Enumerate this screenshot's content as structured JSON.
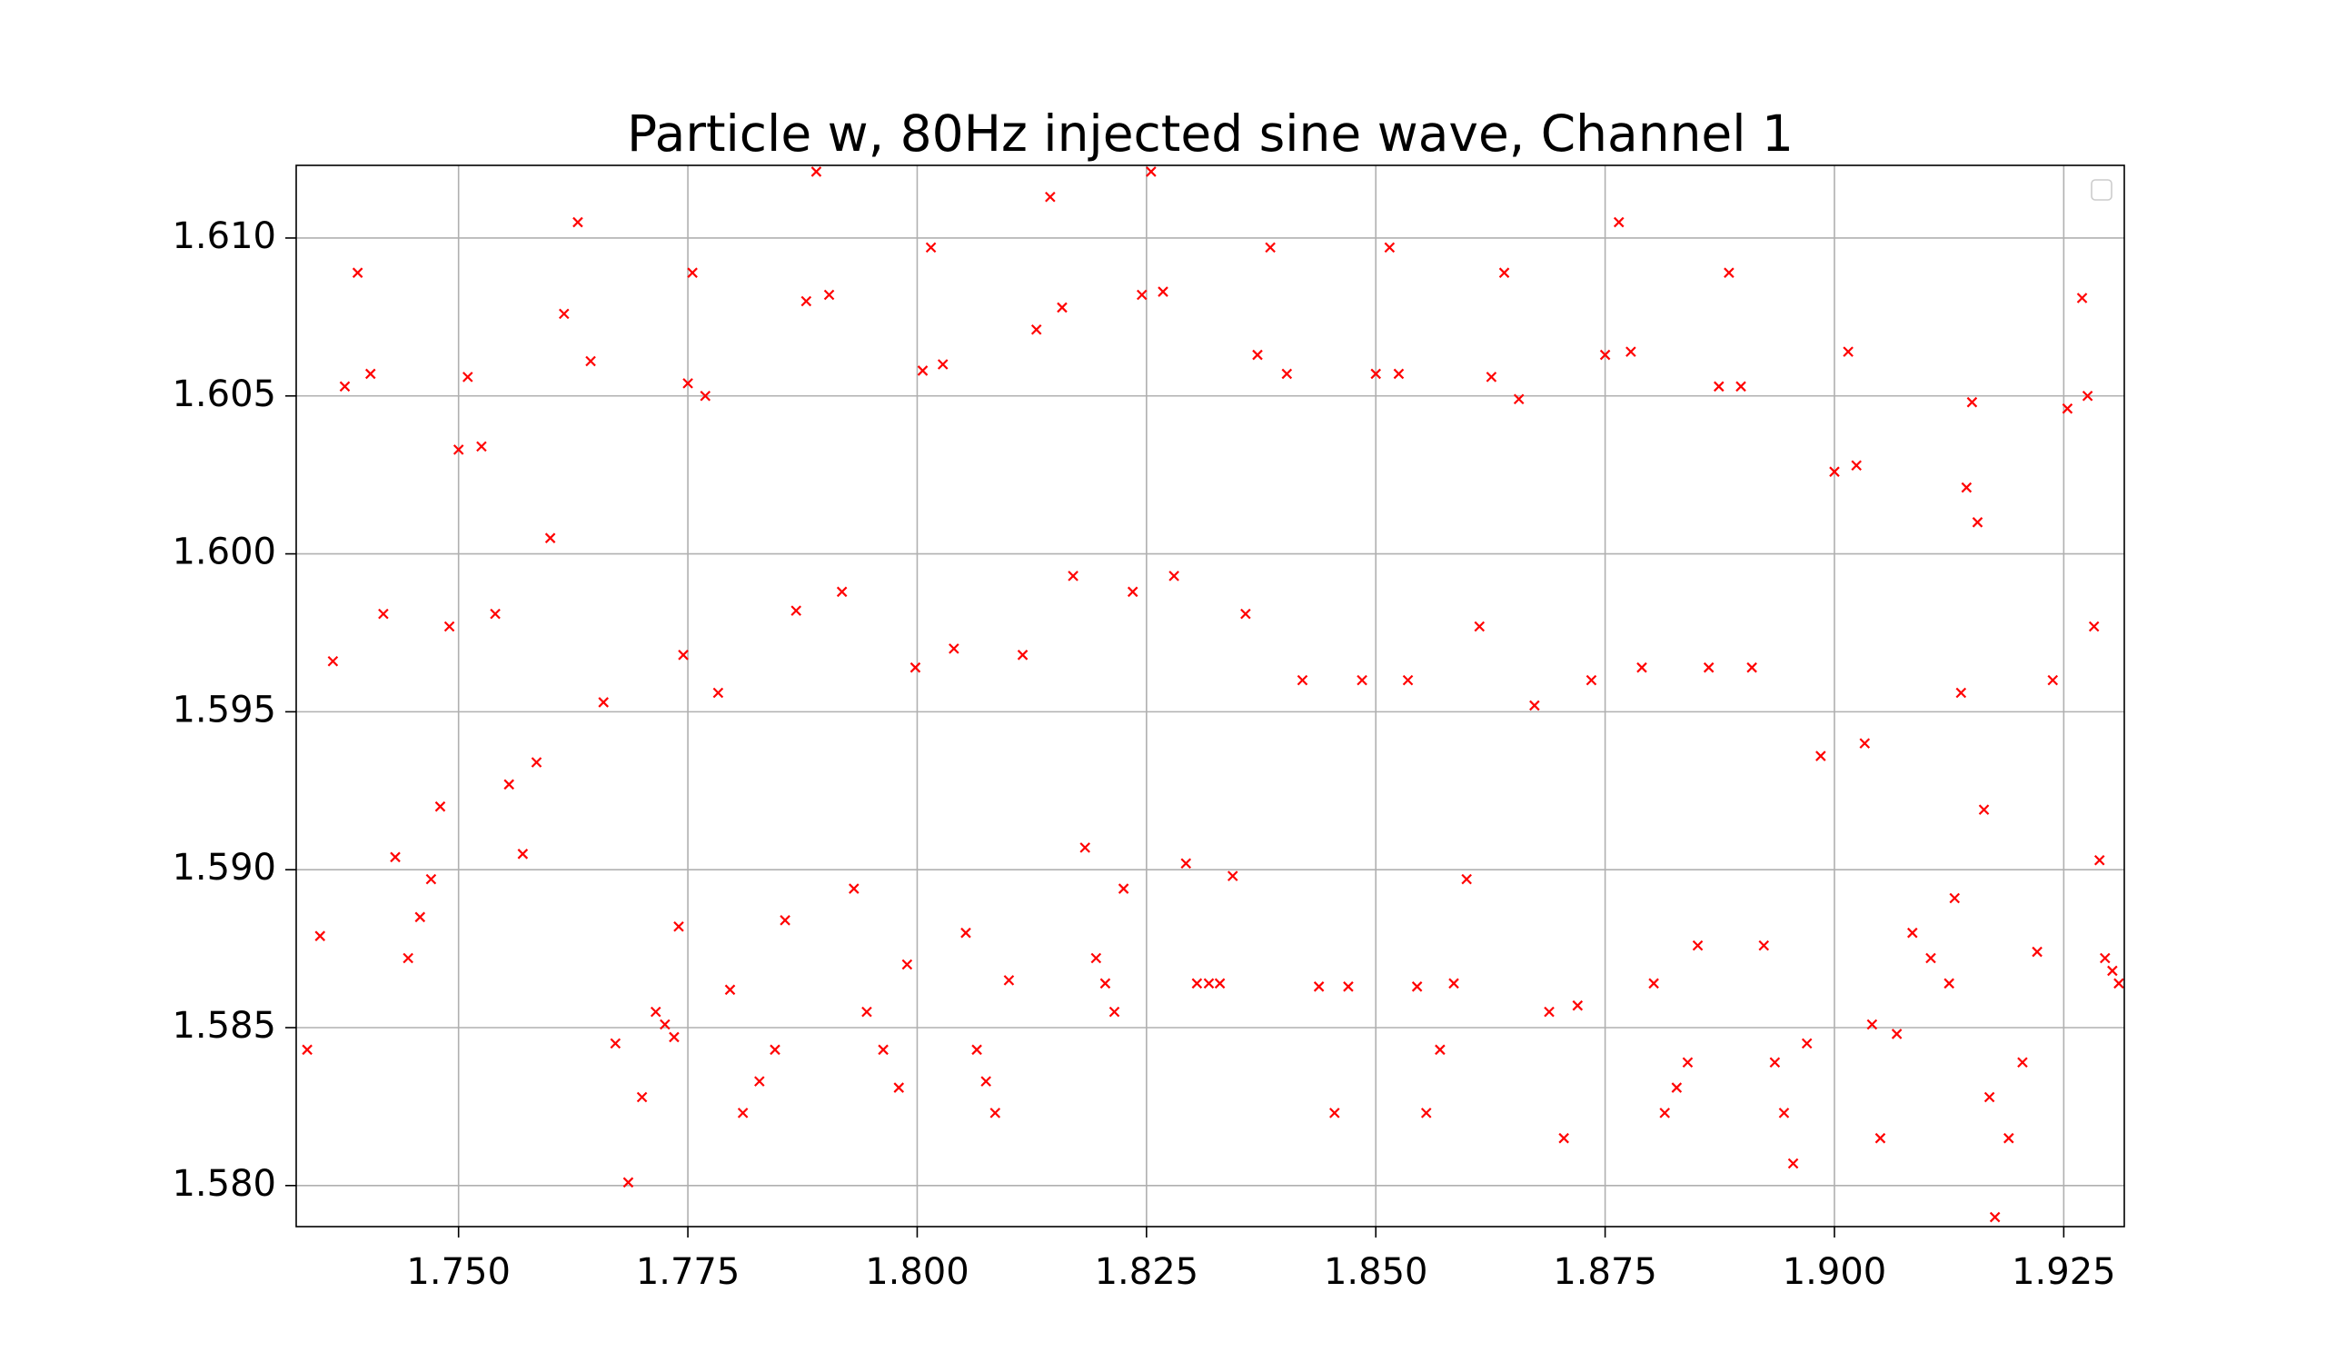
{
  "chart_data": {
    "type": "scatter",
    "title": "Particle w, 80Hz injected sine wave, Channel 1",
    "marker": "x",
    "color": "#ff0000",
    "grid": true,
    "legend": "upper right",
    "xlim": [
      1.7323,
      1.9316
    ],
    "ylim": [
      1.5787,
      1.6123
    ],
    "xticks": [
      {
        "value": 1.75,
        "label": "1.750"
      },
      {
        "value": 1.775,
        "label": "1.775"
      },
      {
        "value": 1.8,
        "label": "1.800"
      },
      {
        "value": 1.825,
        "label": "1.825"
      },
      {
        "value": 1.85,
        "label": "1.850"
      },
      {
        "value": 1.875,
        "label": "1.875"
      },
      {
        "value": 1.9,
        "label": "1.900"
      },
      {
        "value": 1.925,
        "label": "1.925"
      }
    ],
    "yticks": [
      {
        "value": 1.58,
        "label": "1.580"
      },
      {
        "value": 1.585,
        "label": "1.585"
      },
      {
        "value": 1.59,
        "label": "1.590"
      },
      {
        "value": 1.595,
        "label": "1.595"
      },
      {
        "value": 1.6,
        "label": "1.600"
      },
      {
        "value": 1.605,
        "label": "1.605"
      },
      {
        "value": 1.61,
        "label": "1.610"
      }
    ],
    "x": [
      1.7335,
      1.7349,
      1.7363,
      1.7376,
      1.739,
      1.7404,
      1.7418,
      1.7431,
      1.7445,
      1.7458,
      1.747,
      1.748,
      1.749,
      1.75,
      1.751,
      1.7525,
      1.754,
      1.7555,
      1.757,
      1.7585,
      1.76,
      1.7615,
      1.763,
      1.7644,
      1.7658,
      1.7671,
      1.7685,
      1.77,
      1.7715,
      1.7725,
      1.7735,
      1.774,
      1.7745,
      1.775,
      1.7755,
      1.7769,
      1.7783,
      1.7796,
      1.781,
      1.7828,
      1.7845,
      1.7856,
      1.7868,
      1.7879,
      1.789,
      1.7904,
      1.7918,
      1.7931,
      1.7945,
      1.7963,
      1.798,
      1.7989,
      1.7998,
      1.8006,
      1.8015,
      1.8028,
      1.804,
      1.8053,
      1.8065,
      1.8075,
      1.8085,
      1.81,
      1.8115,
      1.813,
      1.8145,
      1.8158,
      1.817,
      1.8183,
      1.8195,
      1.8205,
      1.8215,
      1.8225,
      1.8235,
      1.8245,
      1.8255,
      1.8268,
      1.828,
      1.8293,
      1.8305,
      1.8318,
      1.833,
      1.8344,
      1.8358,
      1.8371,
      1.8385,
      1.8403,
      1.842,
      1.8438,
      1.8455,
      1.847,
      1.8485,
      1.85,
      1.8515,
      1.8525,
      1.8535,
      1.8545,
      1.8555,
      1.857,
      1.8585,
      1.8599,
      1.8613,
      1.8626,
      1.864,
      1.8656,
      1.8673,
      1.8689,
      1.8705,
      1.872,
      1.8735,
      1.875,
      1.8765,
      1.8778,
      1.879,
      1.8803,
      1.8815,
      1.8828,
      1.884,
      1.8851,
      1.8863,
      1.8874,
      1.8885,
      1.8898,
      1.891,
      1.8923,
      1.8935,
      1.8945,
      1.8955,
      1.897,
      1.8985,
      1.9,
      1.9015,
      1.9024,
      1.9033,
      1.9041,
      1.905,
      1.9068,
      1.9085,
      1.9105,
      1.9125,
      1.9131,
      1.9138,
      1.9144,
      1.915,
      1.9156,
      1.9163,
      1.9169,
      1.9175,
      1.919,
      1.9205,
      1.9221,
      1.9238,
      1.9254,
      1.927,
      1.9276,
      1.9283,
      1.9289,
      1.9295,
      1.9303,
      1.931
    ],
    "values": [
      1.5843,
      1.5879,
      1.5966,
      1.6053,
      1.6089,
      1.6057,
      1.5981,
      1.5904,
      1.5872,
      1.5885,
      1.5897,
      1.592,
      1.5977,
      1.6033,
      1.6056,
      1.6034,
      1.5981,
      1.5927,
      1.5905,
      1.5934,
      1.6005,
      1.6076,
      1.6105,
      1.6061,
      1.5953,
      1.5845,
      1.5801,
      1.5828,
      1.5855,
      1.5851,
      1.5847,
      1.5882,
      1.5968,
      1.6054,
      1.6089,
      1.605,
      1.5956,
      1.5862,
      1.5823,
      1.5833,
      1.5843,
      1.5884,
      1.5982,
      1.608,
      1.6121,
      1.6082,
      1.5988,
      1.5894,
      1.5855,
      1.5843,
      1.5831,
      1.587,
      1.5964,
      1.6058,
      1.6097,
      1.606,
      1.597,
      1.588,
      1.5843,
      1.5833,
      1.5823,
      1.5865,
      1.5968,
      1.6071,
      1.6113,
      1.6078,
      1.5993,
      1.5907,
      1.5872,
      1.5864,
      1.5855,
      1.5894,
      1.5988,
      1.6082,
      1.6121,
      1.6083,
      1.5993,
      1.5902,
      1.5864,
      1.5864,
      1.5864,
      1.5898,
      1.5981,
      1.6063,
      1.6097,
      1.6057,
      1.596,
      1.5863,
      1.5823,
      1.5863,
      1.596,
      1.6057,
      1.6097,
      1.6057,
      1.596,
      1.5863,
      1.5823,
      1.5843,
      1.5864,
      1.5897,
      1.5977,
      1.6056,
      1.6089,
      1.6049,
      1.5952,
      1.5855,
      1.5815,
      1.5857,
      1.596,
      1.6063,
      1.6105,
      1.6064,
      1.5964,
      1.5864,
      1.5823,
      1.5831,
      1.5839,
      1.5876,
      1.5964,
      1.6053,
      1.6089,
      1.6053,
      1.5964,
      1.5876,
      1.5839,
      1.5823,
      1.5807,
      1.5845,
      1.5936,
      1.6026,
      1.6064,
      1.6028,
      1.594,
      1.5851,
      1.5815,
      1.5848,
      1.588,
      1.5872,
      1.5864,
      1.5891,
      1.5956,
      1.6021,
      1.6048,
      1.601,
      1.5919,
      1.5828,
      1.579,
      1.5815,
      1.5839,
      1.5874,
      1.596,
      1.6046,
      1.6081,
      1.605,
      1.5977,
      1.5903,
      1.5872,
      1.5868,
      1.5864
    ]
  }
}
